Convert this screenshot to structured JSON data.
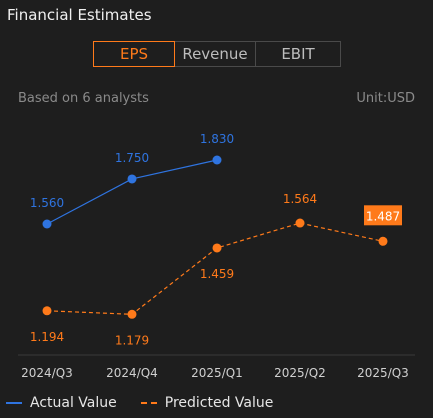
{
  "header": {
    "title": "Financial Estimates"
  },
  "tabs": [
    {
      "label": "EPS"
    },
    {
      "label": "Revenue"
    },
    {
      "label": "EBIT"
    }
  ],
  "info": {
    "analysts": "Based on 6 analysts",
    "unit": "Unit:USD"
  },
  "legend": {
    "actual": "Actual Value",
    "predicted": "Predicted Value"
  },
  "colors": {
    "actual": "#2f74e0",
    "predicted": "#ff7a1a",
    "background": "#1e1e1e"
  },
  "chart_data": {
    "type": "line",
    "categories": [
      "2024/Q3",
      "2024/Q4",
      "2025/Q1",
      "2025/Q2",
      "2025/Q3"
    ],
    "series": [
      {
        "name": "Actual Value",
        "values": [
          1.56,
          1.75,
          1.83,
          null,
          null
        ],
        "labels": [
          "1.560",
          "1.750",
          "1.830",
          "",
          ""
        ],
        "style": "solid"
      },
      {
        "name": "Predicted Value",
        "values": [
          1.194,
          1.179,
          1.459,
          1.564,
          1.487
        ],
        "labels": [
          "1.194",
          "1.179",
          "1.459",
          "1.564",
          "1.487"
        ],
        "style": "dashed"
      }
    ],
    "highlight": {
      "series": 1,
      "index": 4
    },
    "ylim": [
      1.1,
      1.9
    ],
    "grid": false,
    "legend": "bottom-left"
  }
}
